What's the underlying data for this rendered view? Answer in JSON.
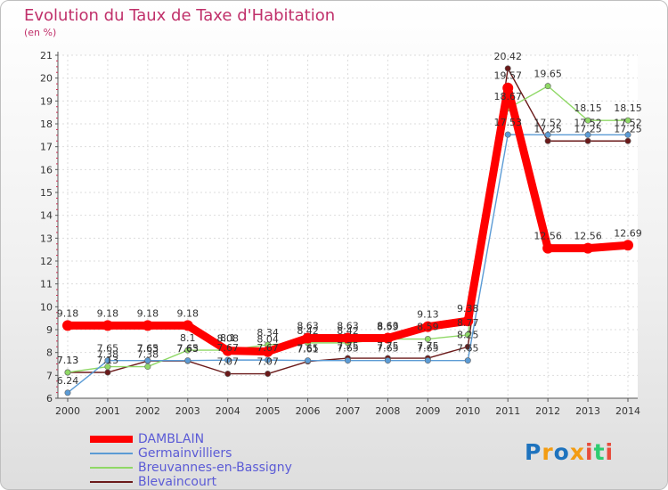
{
  "chart_data": {
    "type": "line",
    "title": "Evolution du Taux de Taxe d'Habitation",
    "ylabel": "(en %)",
    "xlabel": "",
    "ylim": [
      6,
      21
    ],
    "yticks": [
      6,
      7,
      8,
      9,
      10,
      11,
      12,
      13,
      14,
      15,
      16,
      17,
      18,
      19,
      20,
      21
    ],
    "x": [
      "2000",
      "2001",
      "2002",
      "2003",
      "2004",
      "2005",
      "2006",
      "2007",
      "2008",
      "2009",
      "2010",
      "2011",
      "2012",
      "2013",
      "2014"
    ],
    "grid": true,
    "legend_position": "bottom-left",
    "series": [
      {
        "name": "DAMBLAIN",
        "color": "#ff0000",
        "values": [
          9.18,
          9.18,
          9.18,
          9.18,
          8.08,
          8.04,
          8.63,
          8.63,
          8.63,
          9.13,
          9.38,
          19.57,
          12.56,
          12.56,
          12.69
        ],
        "labels": [
          "9.18",
          "9.18",
          "9.18",
          "9.18",
          "8.08",
          "8.04",
          "8.63",
          "8.63",
          "8.63",
          "9.13",
          "9.38",
          "19.57",
          "12.56",
          "12.56",
          "12.69"
        ]
      },
      {
        "name": "Germainvilliers",
        "color": "#5b9bd5",
        "values": [
          6.24,
          7.65,
          7.65,
          7.65,
          7.67,
          7.67,
          7.65,
          7.65,
          7.65,
          7.65,
          7.65,
          17.53,
          17.52,
          17.52,
          17.52
        ],
        "labels": [
          "6.24",
          "7.65",
          "7.65",
          "7.65",
          "7.67",
          "7.67",
          "7.65",
          "7.65",
          "7.65",
          "7.65",
          "7.65",
          "17.53",
          "17.52",
          "17.52",
          "17.52"
        ]
      },
      {
        "name": "Breuvannes-en-Bassigny",
        "color": "#8fd866",
        "values": [
          7.13,
          7.38,
          7.38,
          8.1,
          8.1,
          8.34,
          8.42,
          8.42,
          8.59,
          8.59,
          8.77,
          18.67,
          19.65,
          18.15,
          18.15
        ],
        "labels": [
          "7.13",
          "7.38",
          "7.38",
          "8.1",
          "8.1",
          "8.34",
          "8.42",
          "8.42",
          "8.59",
          "8.59",
          "8.77",
          "18.67",
          "19.65",
          "18.15",
          "18.15"
        ]
      },
      {
        "name": "Blevaincourt",
        "color": "#6b1a1a",
        "values": [
          7.13,
          7.13,
          7.63,
          7.63,
          7.07,
          7.07,
          7.61,
          7.75,
          7.75,
          7.75,
          8.25,
          20.42,
          17.25,
          17.25,
          17.25
        ],
        "labels": [
          "7.13",
          "7.13",
          "7.63",
          "7.63",
          "7.07",
          "7.07",
          "7.61",
          "7.75",
          "7.75",
          "7.75",
          "8.25",
          "20.42",
          "17.25",
          "17.25",
          "17.25"
        ]
      }
    ]
  },
  "brand": {
    "name": "Proxiti",
    "letters": [
      "P",
      "r",
      "o",
      "x",
      "i",
      "t",
      "i"
    ],
    "colors": [
      "#1e73be",
      "#f39c12",
      "#1e73be",
      "#f39c12",
      "#e74c3c",
      "#2ecc71",
      "#e74c3c"
    ]
  }
}
